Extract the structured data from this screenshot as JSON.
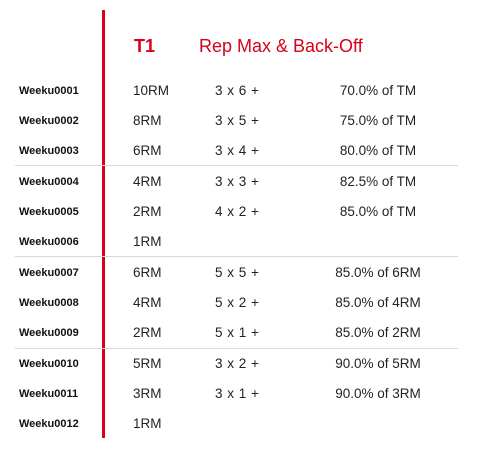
{
  "header": {
    "label": "T1",
    "title": "Rep Max & Back-Off"
  },
  "colors": {
    "accent": "#d8001a",
    "separator": "#d9d9d9"
  },
  "rows": [
    {
      "week": "Weeku0001",
      "rm": "10RM",
      "sets": "3 x 6 +",
      "pct": "70.0% of TM"
    },
    {
      "week": "Weeku0002",
      "rm": "8RM",
      "sets": "3 x 5 +",
      "pct": "75.0% of TM"
    },
    {
      "week": "Weeku0003",
      "rm": "6RM",
      "sets": "3 x 4 +",
      "pct": "80.0% of TM"
    },
    {
      "week": "Weeku0004",
      "rm": "4RM",
      "sets": "3 x 3 +",
      "pct": "82.5% of TM"
    },
    {
      "week": "Weeku0005",
      "rm": "2RM",
      "sets": "4 x 2 +",
      "pct": "85.0% of TM"
    },
    {
      "week": "Weeku0006",
      "rm": "1RM",
      "sets": "",
      "pct": ""
    },
    {
      "week": "Weeku0007",
      "rm": "6RM",
      "sets": "5 x 5 +",
      "pct": "85.0% of 6RM"
    },
    {
      "week": "Weeku0008",
      "rm": "4RM",
      "sets": "5 x 2 +",
      "pct": "85.0% of 4RM"
    },
    {
      "week": "Weeku0009",
      "rm": "2RM",
      "sets": "5 x 1 +",
      "pct": "85.0% of 2RM"
    },
    {
      "week": "Weeku0010",
      "rm": "5RM",
      "sets": "3 x 2 +",
      "pct": "90.0% of 5RM"
    },
    {
      "week": "Weeku0011",
      "rm": "3RM",
      "sets": "3 x 1 +",
      "pct": "90.0% of 3RM"
    },
    {
      "week": "Weeku0012",
      "rm": "1RM",
      "sets": "",
      "pct": ""
    }
  ]
}
